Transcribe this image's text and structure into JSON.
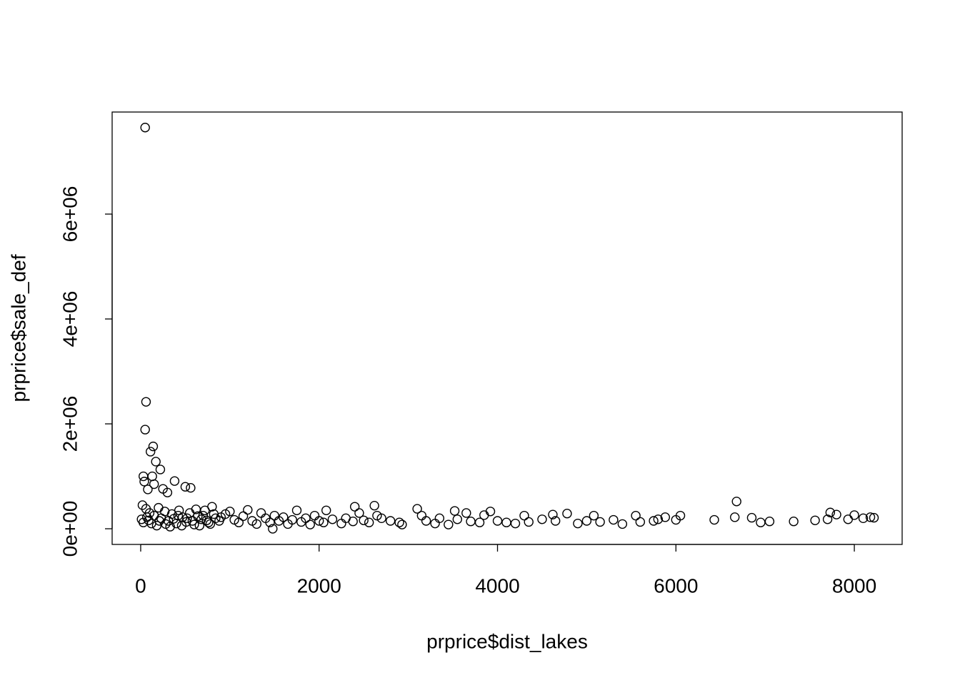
{
  "chart_data": {
    "type": "scatter",
    "x_label": "prprice$dist_lakes",
    "y_label": "prprice$sale_def",
    "x": [
      50,
      60,
      50,
      110,
      140,
      170,
      220,
      30,
      130,
      380,
      500,
      560,
      40,
      80,
      150,
      250,
      300,
      6680,
      20,
      60,
      100,
      150,
      200,
      230,
      270,
      310,
      350,
      400,
      430,
      470,
      510,
      550,
      600,
      640,
      680,
      720,
      760,
      800,
      840,
      880,
      950,
      1000,
      1050,
      10,
      30,
      70,
      90,
      120,
      180,
      210,
      280,
      330,
      370,
      420,
      460,
      520,
      580,
      620,
      660,
      700,
      740,
      780,
      820,
      900,
      1100,
      1150,
      1200,
      1250,
      1300,
      1350,
      1400,
      1450,
      1480,
      1500,
      1550,
      1600,
      1650,
      1700,
      1750,
      1800,
      1850,
      1900,
      1950,
      2000,
      2050,
      2080,
      2150,
      2250,
      2300,
      2380,
      2400,
      2450,
      2500,
      2560,
      2620,
      2650,
      2700,
      2800,
      2900,
      2930,
      3100,
      3150,
      3200,
      3300,
      3350,
      3450,
      3520,
      3550,
      3650,
      3700,
      3800,
      3850,
      3920,
      4000,
      4100,
      4200,
      4300,
      4350,
      4500,
      4620,
      4650,
      4780,
      4900,
      5000,
      5080,
      5150,
      5300,
      5400,
      5550,
      5600,
      5750,
      5800,
      5880,
      6000,
      6050,
      6430,
      6660,
      6850,
      6950,
      7050,
      7320,
      7560,
      7700,
      7730,
      7800,
      7930,
      8000,
      8100,
      8180,
      8220
    ],
    "values": [
      7650000,
      2420000,
      1890000,
      1470000,
      1570000,
      1280000,
      1130000,
      1000000,
      1000000,
      910000,
      800000,
      780000,
      900000,
      750000,
      850000,
      760000,
      690000,
      520000,
      450000,
      380000,
      300000,
      250000,
      400000,
      200000,
      330000,
      150000,
      280000,
      100000,
      350000,
      220000,
      130000,
      300000,
      80000,
      240000,
      180000,
      350000,
      120000,
      420000,
      200000,
      150000,
      280000,
      330000,
      170000,
      180000,
      120000,
      220000,
      160000,
      100000,
      60000,
      150000,
      90000,
      40000,
      190000,
      250000,
      60000,
      200000,
      150000,
      370000,
      60000,
      250000,
      160000,
      90000,
      280000,
      220000,
      120000,
      240000,
      360000,
      150000,
      90000,
      300000,
      200000,
      120000,
      0,
      250000,
      150000,
      220000,
      90000,
      170000,
      350000,
      130000,
      200000,
      80000,
      250000,
      150000,
      120000,
      350000,
      180000,
      100000,
      200000,
      140000,
      420000,
      300000,
      160000,
      120000,
      440000,
      250000,
      200000,
      150000,
      120000,
      80000,
      380000,
      250000,
      150000,
      100000,
      200000,
      80000,
      340000,
      180000,
      300000,
      140000,
      120000,
      260000,
      330000,
      150000,
      120000,
      100000,
      250000,
      130000,
      180000,
      270000,
      150000,
      290000,
      100000,
      150000,
      250000,
      130000,
      170000,
      90000,
      250000,
      130000,
      150000,
      180000,
      220000,
      170000,
      250000,
      170000,
      220000,
      210000,
      120000,
      140000,
      140000,
      160000,
      180000,
      310000,
      270000,
      180000,
      260000,
      200000,
      220000,
      210000
    ],
    "xlim": [
      -320,
      8536
    ],
    "ylim": [
      -299000,
      7946000
    ],
    "xticks": [
      0,
      2000,
      4000,
      6000,
      8000
    ],
    "yticks": [
      {
        "value": 0,
        "label": "0e+00"
      },
      {
        "value": 2000000,
        "label": "2e+06"
      },
      {
        "value": 4000000,
        "label": "4e+06"
      },
      {
        "value": 6000000,
        "label": "6e+06"
      }
    ],
    "color": "#000000"
  }
}
